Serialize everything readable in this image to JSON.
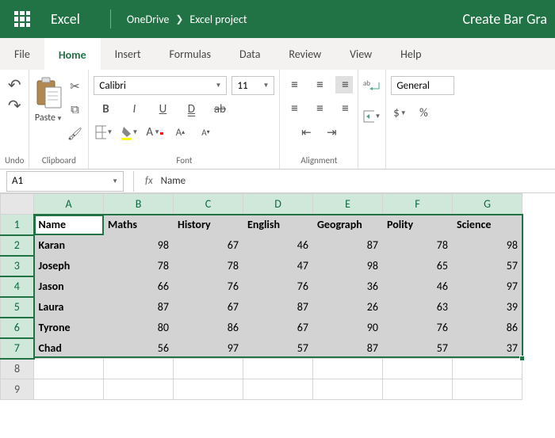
{
  "titlebar": {
    "app": "Excel",
    "breadcrumb1": "OneDrive",
    "breadcrumb2": "Excel project",
    "docTitle": "Create Bar Gra"
  },
  "tabs": [
    "File",
    "Home",
    "Insert",
    "Formulas",
    "Data",
    "Review",
    "View",
    "Help"
  ],
  "activeTab": "Home",
  "ribbon": {
    "undoLabel": "Undo",
    "clipboardLabel": "Clipboard",
    "pasteLabel": "Paste",
    "fontLabel": "Font",
    "fontName": "Calibri",
    "fontSize": "11",
    "alignmentLabel": "Alignment",
    "numberLabel": "General"
  },
  "namebox": "A1",
  "formulaValue": "Name",
  "columns": [
    "A",
    "B",
    "C",
    "D",
    "E",
    "F",
    "G"
  ],
  "headerRow": [
    "Name",
    "Maths",
    "History",
    "English",
    "Geography",
    "Polity",
    "Science"
  ],
  "rows": [
    {
      "name": "Karan",
      "vals": [
        98,
        67,
        46,
        87,
        78,
        98
      ]
    },
    {
      "name": "Joseph",
      "vals": [
        78,
        78,
        47,
        98,
        65,
        57
      ]
    },
    {
      "name": "Jason",
      "vals": [
        66,
        76,
        76,
        36,
        46,
        97
      ]
    },
    {
      "name": "Laura",
      "vals": [
        87,
        67,
        87,
        26,
        63,
        39
      ]
    },
    {
      "name": "Tyrone",
      "vals": [
        80,
        86,
        67,
        90,
        76,
        86
      ]
    },
    {
      "name": "Chad",
      "vals": [
        56,
        97,
        57,
        87,
        57,
        37
      ]
    }
  ],
  "emptyRows": [
    8,
    9
  ]
}
